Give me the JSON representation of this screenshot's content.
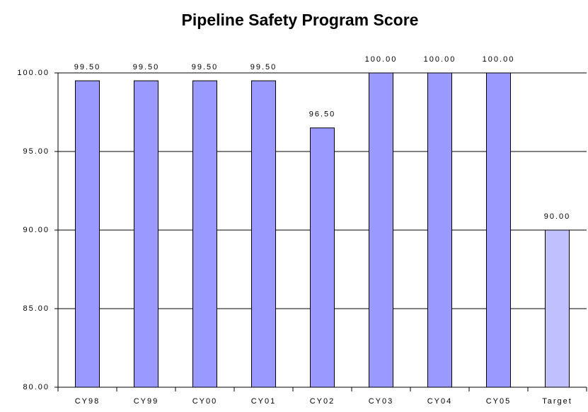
{
  "chart_data": {
    "type": "bar",
    "title": "Pipeline Safety Program Score",
    "categories": [
      "CY98",
      "CY99",
      "CY00",
      "CY01",
      "CY02",
      "CY03",
      "CY04",
      "CY05",
      "Target"
    ],
    "values": [
      99.5,
      99.5,
      99.5,
      99.5,
      96.5,
      100,
      100,
      100,
      90
    ],
    "value_labels": [
      "99.50",
      "99.50",
      "99.50",
      "99.50",
      "96.50",
      "100.00",
      "100.00",
      "100.00",
      "90.00"
    ],
    "colors": [
      "#9999ff",
      "#9999ff",
      "#9999ff",
      "#9999ff",
      "#9999ff",
      "#9999ff",
      "#9999ff",
      "#9999ff",
      "#c0c0ff"
    ],
    "ylim": [
      80,
      100
    ],
    "yticks": [
      {
        "value": 80,
        "label": "80.00"
      },
      {
        "value": 85,
        "label": "85.00"
      },
      {
        "value": 90,
        "label": "90.00"
      },
      {
        "value": 95,
        "label": "95.00"
      },
      {
        "value": 100,
        "label": "100.00"
      }
    ],
    "grid": true
  }
}
